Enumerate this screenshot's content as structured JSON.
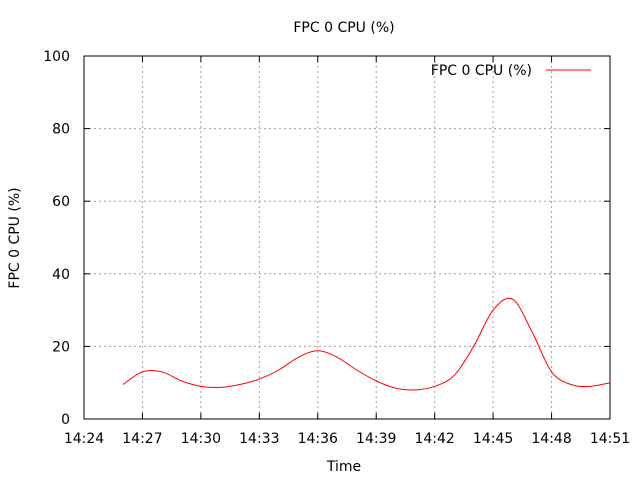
{
  "chart_data": {
    "type": "line",
    "title": "FPC 0 CPU (%)",
    "xlabel": "Time",
    "ylabel": "FPC 0 CPU (%)",
    "xlim": [
      "14:24",
      "14:51"
    ],
    "ylim": [
      0,
      100
    ],
    "x_ticks": [
      "14:24",
      "14:27",
      "14:30",
      "14:33",
      "14:36",
      "14:39",
      "14:42",
      "14:45",
      "14:48",
      "14:51"
    ],
    "y_ticks": [
      0,
      20,
      40,
      60,
      80,
      100
    ],
    "grid": true,
    "legend_position": "top-right",
    "series": [
      {
        "name": "FPC 0 CPU (%)",
        "color": "#ff0000",
        "x": [
          "14:26",
          "14:27",
          "14:28",
          "14:29",
          "14:30",
          "14:31",
          "14:32",
          "14:33",
          "14:34",
          "14:35",
          "14:36",
          "14:37",
          "14:38",
          "14:39",
          "14:40",
          "14:41",
          "14:42",
          "14:43",
          "14:44",
          "14:45",
          "14:46",
          "14:47",
          "14:48",
          "14:49",
          "14:50",
          "14:51"
        ],
        "values": [
          9.5,
          13,
          13,
          10.5,
          9,
          8.7,
          9.5,
          11,
          13.5,
          17,
          18.8,
          17,
          13.5,
          10.5,
          8.5,
          8,
          9,
          12,
          20,
          30,
          33,
          24,
          13,
          9.5,
          9,
          10
        ]
      }
    ]
  }
}
